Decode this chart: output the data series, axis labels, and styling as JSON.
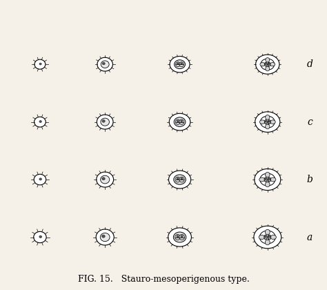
{
  "title": "FIG. 15.   Stauro-mesoperigenous type.",
  "row_labels": [
    "d",
    "c",
    "b",
    "a"
  ],
  "background_color": "#f5f0e8",
  "fig_width": 4.74,
  "fig_height": 4.2,
  "dpi": 100,
  "caption_fontsize": 9,
  "label_fontsize": 10,
  "grid_rows": 4,
  "grid_cols": 4
}
